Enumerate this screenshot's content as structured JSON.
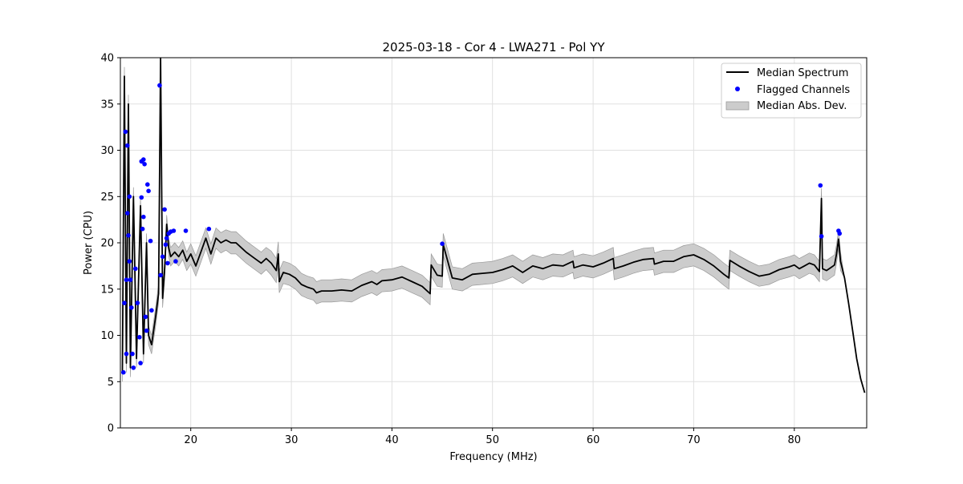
{
  "chart_data": {
    "type": "line",
    "title": "2025-03-18 - Cor 4 - LWA271 - Pol YY",
    "xlabel": "Frequency (MHz)",
    "ylabel": "Power (CPU)",
    "xlim": [
      13.0,
      87.2
    ],
    "ylim": [
      0,
      40
    ],
    "xticks": [
      20,
      30,
      40,
      50,
      60,
      70,
      80
    ],
    "yticks": [
      0,
      5,
      10,
      15,
      20,
      25,
      30,
      35,
      40
    ],
    "grid": true,
    "legend": {
      "position": "top-right",
      "entries": [
        {
          "label": "Median Spectrum",
          "kind": "line"
        },
        {
          "label": "Flagged Channels",
          "kind": "marker"
        },
        {
          "label": "Median Abs. Dev.",
          "kind": "band"
        }
      ]
    },
    "colors": {
      "line": "#000000",
      "marker": "#0000ff",
      "band": "#cccccc",
      "band_edge": "#999999",
      "grid": "#e0e0e0"
    },
    "series": [
      {
        "name": "Median Spectrum",
        "x": [
          13.2,
          13.4,
          13.6,
          13.8,
          14.0,
          14.3,
          14.6,
          15.0,
          15.3,
          15.6,
          15.8,
          16.1,
          16.5,
          16.8,
          17.0,
          17.2,
          17.4,
          17.6,
          17.8,
          18.0,
          18.4,
          18.8,
          19.2,
          19.6,
          20.0,
          20.5,
          21.0,
          21.5,
          22.0,
          22.5,
          23.0,
          23.5,
          24.0,
          24.5,
          25.0,
          25.5,
          26.0,
          26.5,
          27.0,
          27.5,
          28.0,
          28.5,
          28.7,
          28.8,
          29.2,
          29.8,
          30.4,
          31.0,
          31.6,
          32.2,
          32.5,
          33.0,
          34.0,
          35.0,
          36.0,
          37.0,
          38.0,
          38.5,
          39.0,
          40.0,
          41.0,
          42.0,
          43.0,
          43.8,
          43.9,
          44.5,
          45.0,
          45.1,
          46.0,
          47.0,
          48.0,
          49.0,
          50.0,
          51.0,
          52.0,
          53.0,
          54.0,
          55.0,
          56.0,
          57.0,
          58.0,
          58.1,
          59.0,
          60.0,
          61.0,
          62.0,
          62.1,
          63.0,
          64.0,
          65.0,
          66.0,
          66.1,
          67.0,
          68.0,
          69.0,
          70.0,
          71.0,
          72.0,
          73.0,
          73.5,
          73.6,
          74.5,
          75.5,
          76.5,
          77.5,
          78.5,
          79.5,
          80.0,
          80.5,
          81.0,
          81.5,
          82.0,
          82.5,
          82.7,
          82.8,
          83.2,
          83.6,
          84.0,
          84.2,
          84.4,
          84.6,
          85.0,
          85.4,
          85.8,
          86.2,
          86.6,
          87.0
        ],
        "y": [
          6.0,
          38.0,
          7.0,
          35.0,
          6.5,
          25.0,
          7.5,
          24.0,
          8.0,
          20.0,
          10.0,
          9.0,
          12.0,
          14.5,
          40.0,
          14.0,
          17.0,
          22.0,
          19.5,
          18.5,
          19.0,
          18.5,
          19.2,
          18.0,
          18.8,
          17.5,
          19.0,
          20.5,
          18.8,
          20.5,
          20.0,
          20.3,
          20.0,
          20.0,
          19.5,
          19.0,
          18.6,
          18.2,
          17.8,
          18.3,
          17.8,
          17.0,
          18.8,
          15.8,
          16.8,
          16.6,
          16.2,
          15.5,
          15.2,
          15.0,
          14.6,
          14.8,
          14.8,
          14.9,
          14.8,
          15.4,
          15.8,
          15.5,
          15.9,
          16.0,
          16.3,
          15.8,
          15.3,
          14.5,
          17.6,
          16.5,
          16.4,
          19.8,
          16.2,
          16.0,
          16.6,
          16.7,
          16.8,
          17.1,
          17.5,
          16.8,
          17.5,
          17.2,
          17.6,
          17.5,
          18.0,
          17.3,
          17.6,
          17.4,
          17.8,
          18.3,
          17.2,
          17.5,
          17.9,
          18.2,
          18.3,
          17.7,
          18.0,
          18.0,
          18.5,
          18.7,
          18.2,
          17.5,
          16.6,
          16.2,
          18.1,
          17.5,
          16.9,
          16.4,
          16.6,
          17.1,
          17.4,
          17.6,
          17.2,
          17.5,
          17.8,
          17.6,
          16.9,
          24.8,
          17.2,
          17.0,
          17.3,
          17.6,
          18.8,
          20.4,
          18.0,
          16.2,
          13.5,
          10.5,
          7.5,
          5.3,
          3.8
        ],
        "dev": [
          1.0,
          1.0,
          1.0,
          1.0,
          1.0,
          1.0,
          1.0,
          1.0,
          1.0,
          1.0,
          1.0,
          1.0,
          1.0,
          1.0,
          1.0,
          1.0,
          1.0,
          1.0,
          1.0,
          1.0,
          1.0,
          1.0,
          1.0,
          1.0,
          1.1,
          1.1,
          1.1,
          1.1,
          1.1,
          1.1,
          1.1,
          1.1,
          1.2,
          1.2,
          1.2,
          1.2,
          1.2,
          1.2,
          1.2,
          1.2,
          1.3,
          1.3,
          1.3,
          1.2,
          1.2,
          1.2,
          1.2,
          1.2,
          1.2,
          1.2,
          1.2,
          1.2,
          1.2,
          1.2,
          1.2,
          1.2,
          1.2,
          1.2,
          1.2,
          1.2,
          1.2,
          1.2,
          1.2,
          1.2,
          1.2,
          1.2,
          1.2,
          1.2,
          1.2,
          1.2,
          1.2,
          1.2,
          1.2,
          1.2,
          1.2,
          1.2,
          1.2,
          1.2,
          1.2,
          1.2,
          1.2,
          1.2,
          1.2,
          1.2,
          1.2,
          1.2,
          1.2,
          1.2,
          1.2,
          1.2,
          1.2,
          1.2,
          1.2,
          1.2,
          1.2,
          1.2,
          1.2,
          1.2,
          1.2,
          1.2,
          1.1,
          1.1,
          1.1,
          1.1,
          1.1,
          1.1,
          1.1,
          1.1,
          1.1,
          1.1,
          1.1,
          1.1,
          1.1,
          1.1,
          1.1,
          1.1,
          1.1,
          1.1,
          1.0,
          1.0,
          1.0,
          0.0,
          0.0,
          0.0,
          0.0,
          0.0,
          0.0
        ]
      },
      {
        "name": "Flagged Channels",
        "x": [
          13.3,
          13.4,
          13.5,
          13.6,
          13.6,
          13.7,
          13.7,
          13.8,
          13.9,
          13.9,
          14.0,
          14.1,
          14.2,
          14.3,
          14.5,
          14.7,
          14.9,
          15.0,
          15.1,
          15.1,
          15.2,
          15.3,
          15.3,
          15.4,
          15.5,
          15.6,
          15.7,
          15.8,
          16.0,
          16.1,
          16.9,
          17.0,
          17.2,
          17.4,
          17.5,
          17.6,
          17.7,
          17.8,
          18.0,
          18.3,
          18.5,
          19.5,
          21.8,
          45.0,
          82.6,
          82.7,
          84.4,
          84.5
        ],
        "y": [
          6.0,
          13.5,
          32.0,
          16.0,
          8.0,
          30.5,
          23.2,
          20.8,
          25.0,
          18.0,
          16.0,
          13.0,
          8.0,
          6.5,
          17.2,
          13.5,
          9.8,
          7.0,
          28.8,
          24.9,
          21.5,
          22.8,
          29.0,
          28.5,
          12.0,
          10.5,
          26.3,
          25.6,
          20.2,
          12.7,
          37.0,
          16.5,
          18.5,
          23.6,
          19.8,
          20.5,
          17.8,
          21.0,
          21.2,
          21.3,
          18.0,
          21.3,
          21.5,
          19.9,
          26.2,
          20.7,
          21.3,
          21.0
        ]
      }
    ]
  }
}
